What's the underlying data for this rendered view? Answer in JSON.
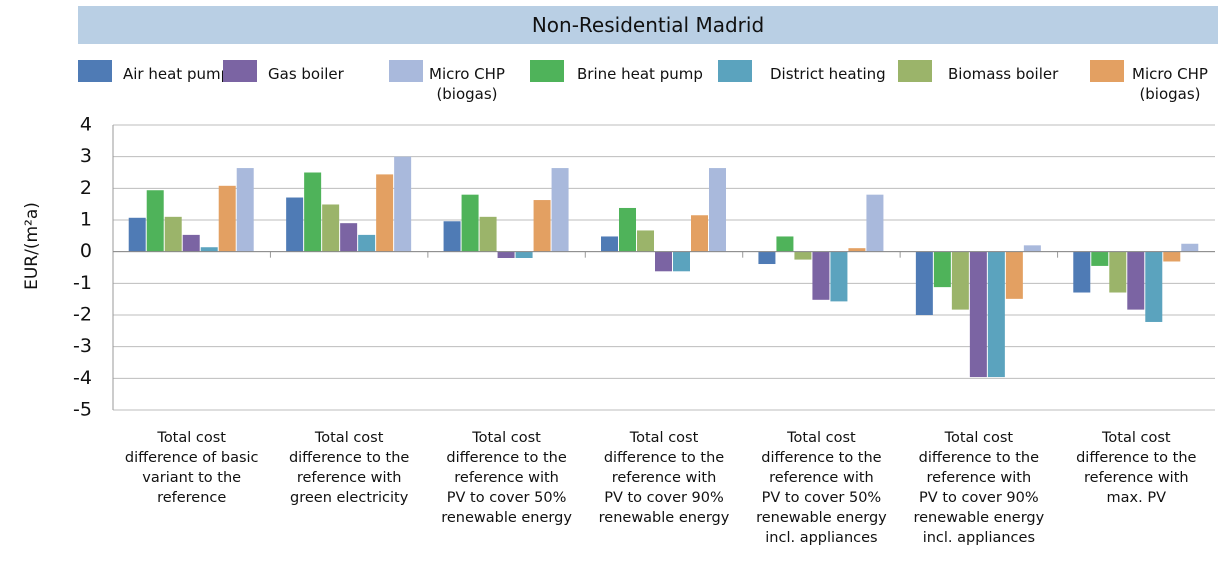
{
  "chart_data": {
    "type": "bar",
    "title": "Non-Residential Madrid",
    "y_label": "EUR/(m²a)",
    "categories": [
      "Total cost\ndifference of basic\nvariant to the\nreference",
      "Total cost\ndifference to the\nreference with\ngreen electricity",
      "Total cost\ndifference to the\nreference with\nPV to cover 50%\nrenewable energy",
      "Total cost\ndifference to the\nreference with\nPV to cover 90%\nrenewable energy",
      "Total cost\ndifference to the\nreference with\nPV to cover 50%\nrenewable energy\nincl. appliances",
      "Total cost\ndifference to the\nreference with\nPV to cover 90%\nrenewable energy\nincl. appliances",
      "Total cost\ndifference to the\nreference with\nmax. PV"
    ],
    "series": [
      {
        "name": "Air heat pump",
        "color": "#4f7bb5",
        "values": [
          1.07,
          1.71,
          0.96,
          0.48,
          -0.39,
          -2.0,
          -1.29
        ]
      },
      {
        "name": "Gas boiler",
        "color": "#7b64a3",
        "values": [
          0.53,
          0.9,
          -0.2,
          -0.62,
          -1.52,
          -3.96,
          -1.83
        ]
      },
      {
        "name": "Micro CHP\n(biogas)",
        "color": "#a9b9dc",
        "values": [
          2.64,
          3.0,
          2.64,
          2.64,
          1.8,
          0.2,
          0.25
        ]
      },
      {
        "name": "Brine heat pump",
        "color": "#4fb35a",
        "values": [
          1.94,
          2.5,
          1.8,
          1.38,
          0.48,
          -1.12,
          -0.45
        ]
      },
      {
        "name": "District heating",
        "color": "#5ba3be",
        "values": [
          0.14,
          0.53,
          -0.2,
          -0.62,
          -1.57,
          -3.96,
          -2.22
        ]
      },
      {
        "name": "Biomass boiler",
        "color": "#9bb46a",
        "values": [
          1.1,
          1.49,
          1.1,
          0.67,
          -0.25,
          -1.83,
          -1.29
        ]
      },
      {
        "name": "Micro CHP\n(biogas)",
        "color": "#e3a062",
        "values": [
          2.08,
          2.44,
          1.63,
          1.15,
          0.11,
          -1.49,
          -0.31
        ]
      }
    ],
    "ylim": [
      -5,
      4
    ],
    "yticks": [
      4,
      3,
      2,
      1,
      0,
      -1,
      -2,
      -3,
      -4,
      -5
    ],
    "grid": true
  }
}
